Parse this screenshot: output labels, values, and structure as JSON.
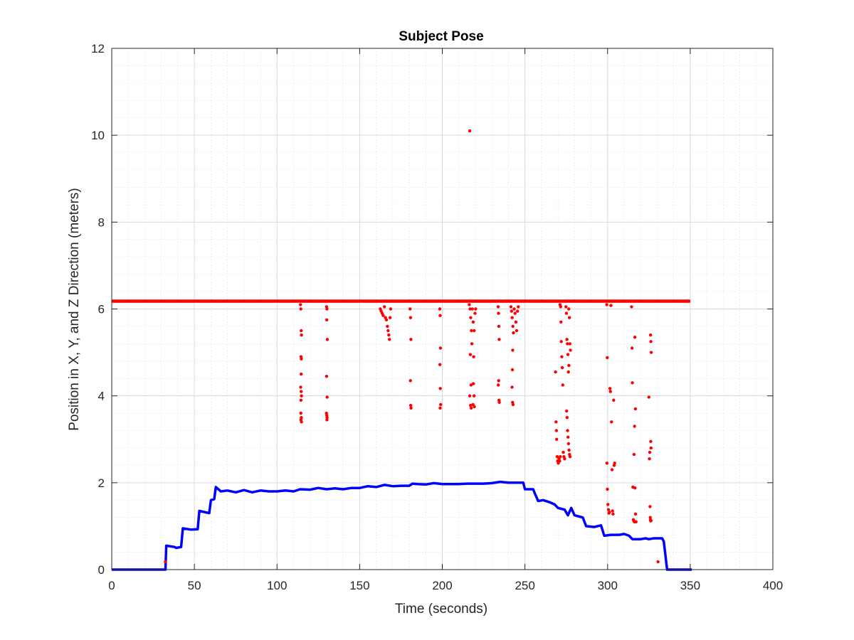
{
  "chart_data": {
    "type": "scatter",
    "title": "Subject Pose",
    "xlabel": "Time (seconds)",
    "ylabel": "Position in X, Y, and Z Direction (meters)",
    "xlim": [
      0,
      400
    ],
    "ylim": [
      0,
      12
    ],
    "xticks": [
      0,
      50,
      100,
      150,
      200,
      250,
      300,
      350,
      400
    ],
    "yticks": [
      0,
      2,
      4,
      6,
      8,
      10,
      12
    ],
    "xtick_labels": [
      "0",
      "50",
      "100",
      "150",
      "200",
      "250",
      "300",
      "350",
      "400"
    ],
    "ytick_labels": [
      "0",
      "2",
      "4",
      "6",
      "8",
      "10",
      "12"
    ],
    "grid": true,
    "minor_grid": true,
    "colors": {
      "red_series": "#ff0000",
      "blue_series": "#0000ff",
      "grid": "#d9d9d9",
      "axis": "#262626"
    },
    "red_baseline": {
      "x_start": 0,
      "x_end": 350,
      "y": 6.18
    },
    "red_points": [
      [
        114.2,
        6.1
      ],
      [
        114.4,
        6.0
      ],
      [
        114.6,
        5.5
      ],
      [
        114.8,
        5.4
      ],
      [
        114.5,
        4.9
      ],
      [
        114.7,
        4.85
      ],
      [
        114.6,
        4.5
      ],
      [
        114.3,
        4.2
      ],
      [
        114.6,
        4.1
      ],
      [
        114.8,
        4.0
      ],
      [
        114.5,
        3.9
      ],
      [
        114.4,
        3.6
      ],
      [
        114.7,
        3.5
      ],
      [
        114.5,
        3.45
      ],
      [
        114.8,
        3.4
      ],
      [
        130.0,
        6.05
      ],
      [
        130.2,
        6.0
      ],
      [
        130.1,
        5.75
      ],
      [
        130.4,
        5.3
      ],
      [
        130.0,
        4.45
      ],
      [
        130.3,
        3.97
      ],
      [
        129.9,
        3.6
      ],
      [
        130.1,
        3.55
      ],
      [
        130.3,
        3.5
      ],
      [
        130.2,
        3.45
      ],
      [
        162.5,
        6.0
      ],
      [
        163.0,
        5.95
      ],
      [
        163.6,
        5.9
      ],
      [
        164.2,
        5.85
      ],
      [
        165.0,
        6.05
      ],
      [
        165.6,
        5.8
      ],
      [
        166.2,
        5.75
      ],
      [
        166.8,
        5.6
      ],
      [
        167.2,
        5.5
      ],
      [
        167.6,
        5.4
      ],
      [
        168.0,
        5.3
      ],
      [
        168.4,
        5.8
      ],
      [
        168.8,
        6.0
      ],
      [
        180.5,
        6.0
      ],
      [
        180.8,
        5.8
      ],
      [
        181.0,
        5.3
      ],
      [
        180.7,
        4.35
      ],
      [
        180.9,
        3.78
      ],
      [
        181.1,
        3.72
      ],
      [
        198.5,
        6.0
      ],
      [
        198.7,
        5.85
      ],
      [
        198.9,
        5.1
      ],
      [
        198.6,
        4.72
      ],
      [
        198.8,
        4.17
      ],
      [
        199.0,
        3.8
      ],
      [
        198.7,
        3.72
      ],
      [
        216.3,
        6.1
      ],
      [
        216.8,
        6.0
      ],
      [
        217.2,
        5.8
      ],
      [
        217.6,
        5.5
      ],
      [
        217.9,
        5.2
      ],
      [
        216.9,
        4.95
      ],
      [
        217.4,
        4.25
      ],
      [
        216.6,
        4.0
      ],
      [
        217.1,
        3.78
      ],
      [
        217.5,
        3.72
      ],
      [
        218.2,
        6.0
      ],
      [
        218.7,
        5.7
      ],
      [
        219.3,
        5.5
      ],
      [
        219.0,
        4.9
      ],
      [
        218.8,
        4.28
      ],
      [
        219.2,
        4.0
      ],
      [
        218.6,
        3.8
      ],
      [
        219.4,
        3.75
      ],
      [
        219.8,
        5.9
      ],
      [
        220.2,
        6.0
      ],
      [
        233.8,
        6.05
      ],
      [
        234.0,
        5.9
      ],
      [
        234.2,
        5.6
      ],
      [
        234.4,
        5.3
      ],
      [
        234.1,
        4.35
      ],
      [
        233.9,
        4.25
      ],
      [
        234.3,
        3.9
      ],
      [
        234.5,
        3.85
      ],
      [
        241.5,
        6.05
      ],
      [
        241.9,
        5.95
      ],
      [
        242.3,
        5.8
      ],
      [
        242.7,
        5.6
      ],
      [
        243.0,
        5.45
      ],
      [
        242.6,
        5.05
      ],
      [
        242.4,
        4.6
      ],
      [
        242.2,
        4.2
      ],
      [
        242.5,
        3.85
      ],
      [
        242.8,
        3.8
      ],
      [
        243.5,
        6.0
      ],
      [
        244.0,
        5.9
      ],
      [
        244.5,
        5.7
      ],
      [
        245.0,
        5.5
      ],
      [
        245.5,
        5.95
      ],
      [
        246.0,
        6.05
      ],
      [
        268.5,
        4.55
      ],
      [
        268.8,
        3.4
      ],
      [
        269.0,
        3.2
      ],
      [
        269.2,
        3.0
      ],
      [
        269.5,
        2.6
      ],
      [
        269.8,
        2.5
      ],
      [
        270.2,
        2.45
      ],
      [
        270.6,
        2.55
      ],
      [
        271.0,
        2.5
      ],
      [
        271.4,
        2.6
      ],
      [
        271.2,
        6.1
      ],
      [
        271.6,
        6.05
      ],
      [
        271.8,
        5.7
      ],
      [
        272.0,
        5.25
      ],
      [
        272.3,
        4.9
      ],
      [
        272.6,
        4.65
      ],
      [
        272.9,
        4.25
      ],
      [
        273.2,
        2.7
      ],
      [
        273.6,
        2.6
      ],
      [
        274.0,
        2.55
      ],
      [
        274.8,
        6.05
      ],
      [
        275.1,
        5.9
      ],
      [
        275.4,
        5.3
      ],
      [
        275.7,
        5.2
      ],
      [
        276.0,
        4.95
      ],
      [
        276.3,
        4.55
      ],
      [
        275.2,
        3.65
      ],
      [
        275.5,
        3.5
      ],
      [
        275.8,
        3.2
      ],
      [
        276.1,
        3.05
      ],
      [
        276.4,
        2.9
      ],
      [
        276.7,
        2.75
      ],
      [
        277.0,
        2.65
      ],
      [
        277.3,
        2.6
      ],
      [
        276.5,
        6.0
      ],
      [
        276.9,
        5.8
      ],
      [
        277.2,
        5.2
      ],
      [
        277.5,
        5.05
      ],
      [
        276.6,
        4.7
      ],
      [
        299.5,
        6.1
      ],
      [
        299.8,
        4.88
      ],
      [
        299.6,
        2.45
      ],
      [
        299.9,
        1.85
      ],
      [
        300.2,
        1.5
      ],
      [
        300.5,
        1.38
      ],
      [
        300.8,
        1.3
      ],
      [
        301.1,
        1.32
      ],
      [
        301.4,
        4.17
      ],
      [
        301.7,
        4.1
      ],
      [
        302.0,
        6.08
      ],
      [
        302.4,
        3.4
      ],
      [
        302.7,
        2.3
      ],
      [
        303.0,
        1.35
      ],
      [
        303.3,
        1.28
      ],
      [
        303.7,
        3.9
      ],
      [
        304.0,
        2.4
      ],
      [
        304.3,
        2.45
      ],
      [
        314.5,
        6.05
      ],
      [
        314.8,
        5.1
      ],
      [
        315.0,
        4.3
      ],
      [
        315.3,
        1.9
      ],
      [
        315.6,
        1.15
      ],
      [
        315.9,
        1.12
      ],
      [
        316.2,
        1.1
      ],
      [
        316.5,
        5.35
      ],
      [
        316.8,
        3.7
      ],
      [
        316.3,
        3.3
      ],
      [
        316.0,
        2.65
      ],
      [
        316.6,
        1.88
      ],
      [
        316.9,
        1.28
      ],
      [
        317.2,
        1.1
      ],
      [
        325.0,
        3.97
      ],
      [
        325.3,
        2.55
      ],
      [
        325.5,
        2.7
      ],
      [
        325.7,
        1.45
      ],
      [
        325.9,
        1.15
      ],
      [
        326.1,
        1.12
      ],
      [
        326.3,
        1.13
      ],
      [
        326.0,
        5.4
      ],
      [
        326.2,
        5.25
      ],
      [
        326.4,
        5.0
      ],
      [
        326.1,
        2.95
      ],
      [
        326.3,
        2.8
      ],
      [
        325.8,
        1.2
      ],
      [
        216.6,
        10.1
      ],
      [
        32.5,
        0.18
      ],
      [
        330.5,
        0.18
      ]
    ],
    "blue_line": [
      [
        0,
        0
      ],
      [
        32.5,
        0
      ],
      [
        33,
        0.55
      ],
      [
        38,
        0.52
      ],
      [
        39,
        0.5
      ],
      [
        42,
        0.52
      ],
      [
        43,
        0.95
      ],
      [
        48,
        0.92
      ],
      [
        52,
        0.93
      ],
      [
        53,
        1.35
      ],
      [
        59,
        1.3
      ],
      [
        60,
        1.6
      ],
      [
        62,
        1.62
      ],
      [
        63,
        1.9
      ],
      [
        66,
        1.8
      ],
      [
        70,
        1.82
      ],
      [
        75,
        1.78
      ],
      [
        80,
        1.83
      ],
      [
        85,
        1.78
      ],
      [
        90,
        1.82
      ],
      [
        95,
        1.8
      ],
      [
        100,
        1.8
      ],
      [
        105,
        1.82
      ],
      [
        110,
        1.8
      ],
      [
        114,
        1.85
      ],
      [
        120,
        1.84
      ],
      [
        125,
        1.88
      ],
      [
        130,
        1.85
      ],
      [
        135,
        1.87
      ],
      [
        140,
        1.85
      ],
      [
        145,
        1.88
      ],
      [
        150,
        1.88
      ],
      [
        155,
        1.92
      ],
      [
        160,
        1.9
      ],
      [
        165,
        1.95
      ],
      [
        170,
        1.92
      ],
      [
        175,
        1.93
      ],
      [
        180,
        1.93
      ],
      [
        182,
        1.98
      ],
      [
        185,
        1.97
      ],
      [
        190,
        1.96
      ],
      [
        195,
        1.99
      ],
      [
        200,
        1.97
      ],
      [
        205,
        1.97
      ],
      [
        210,
        1.97
      ],
      [
        215,
        1.98
      ],
      [
        220,
        1.98
      ],
      [
        225,
        1.98
      ],
      [
        230,
        1.99
      ],
      [
        235,
        2.02
      ],
      [
        240,
        2.0
      ],
      [
        245,
        2.0
      ],
      [
        249,
        2.0
      ],
      [
        250,
        1.85
      ],
      [
        255,
        1.85
      ],
      [
        256,
        1.75
      ],
      [
        258,
        1.58
      ],
      [
        261,
        1.6
      ],
      [
        265,
        1.55
      ],
      [
        268,
        1.5
      ],
      [
        270,
        1.42
      ],
      [
        274,
        1.38
      ],
      [
        276,
        1.25
      ],
      [
        278,
        1.42
      ],
      [
        280,
        1.25
      ],
      [
        283,
        1.22
      ],
      [
        285,
        1.2
      ],
      [
        287,
        1.0
      ],
      [
        292,
        0.98
      ],
      [
        296,
        1.02
      ],
      [
        298,
        0.78
      ],
      [
        302,
        0.8
      ],
      [
        307,
        0.8
      ],
      [
        310,
        0.82
      ],
      [
        313,
        0.78
      ],
      [
        315,
        0.7
      ],
      [
        320,
        0.7
      ],
      [
        323,
        0.72
      ],
      [
        325,
        0.7
      ],
      [
        328,
        0.72
      ],
      [
        333,
        0.72
      ],
      [
        334,
        0.65
      ],
      [
        336,
        0.0
      ],
      [
        351,
        0.0
      ]
    ]
  }
}
